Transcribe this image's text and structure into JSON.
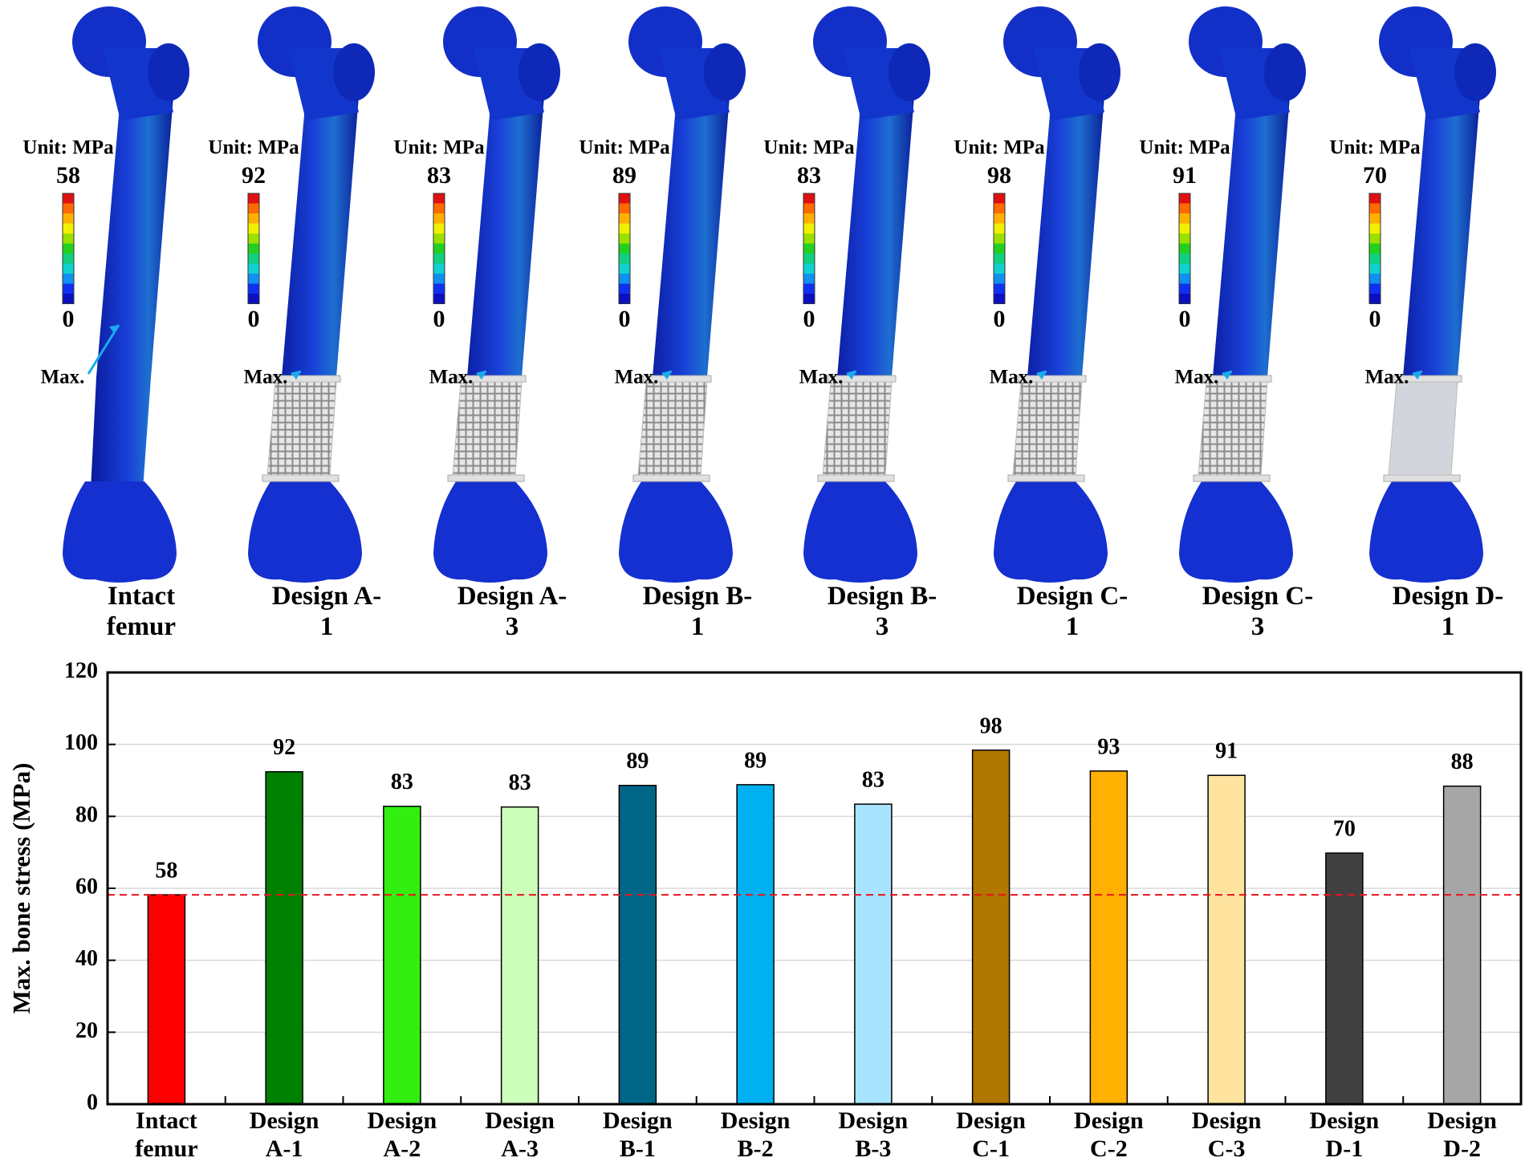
{
  "femurs": [
    {
      "label": "Intact femur",
      "unit": "Unit: MPa",
      "max": 58,
      "min": 0,
      "annotation": "Max."
    },
    {
      "label": "Design A-1",
      "unit": "Unit: MPa",
      "max": 92,
      "min": 0,
      "annotation": "Max."
    },
    {
      "label": "Design A-3",
      "unit": "Unit: MPa",
      "max": 83,
      "min": 0,
      "annotation": "Max."
    },
    {
      "label": "Design B-1",
      "unit": "Unit: MPa",
      "max": 89,
      "min": 0,
      "annotation": "Max."
    },
    {
      "label": "Design B-3",
      "unit": "Unit: MPa",
      "max": 83,
      "min": 0,
      "annotation": "Max."
    },
    {
      "label": "Design C-1",
      "unit": "Unit: MPa",
      "max": 98,
      "min": 0,
      "annotation": "Max."
    },
    {
      "label": "Design C-3",
      "unit": "Unit: MPa",
      "max": 91,
      "min": 0,
      "annotation": "Max."
    },
    {
      "label": "Design D-1",
      "unit": "Unit: MPa",
      "max": 70,
      "min": 0,
      "annotation": "Max."
    }
  ],
  "chart_data": {
    "type": "bar",
    "y_label": "Max. bone stress (MPa)",
    "categories": [
      "Intact femur",
      "Design A-1",
      "Design A-2",
      "Design A-3",
      "Design B-1",
      "Design B-2",
      "Design B-3",
      "Design C-1",
      "Design C-2",
      "Design C-3",
      "Design D-1",
      "Design D-2"
    ],
    "values": [
      58.2,
      92.4,
      82.8,
      82.6,
      88.6,
      88.8,
      83.4,
      98.4,
      92.6,
      91.4,
      69.8,
      88.4
    ],
    "value_labels": [
      "58",
      "92",
      "83",
      "83",
      "89",
      "89",
      "83",
      "98",
      "93",
      "91",
      "70",
      "88"
    ],
    "colors": [
      "#ff0000",
      "#008000",
      "#33ee11",
      "#ccffbb",
      "#006688",
      "#00b0f0",
      "#a8e4ff",
      "#b07800",
      "#ffb000",
      "#ffe4a0",
      "#404040",
      "#a6a6a6"
    ],
    "reference_line": {
      "value": 58.2,
      "color": "#e8141e"
    },
    "ylim": [
      0,
      120
    ],
    "yticks": [
      0,
      20,
      40,
      60,
      80,
      100,
      120
    ],
    "grid": true
  }
}
